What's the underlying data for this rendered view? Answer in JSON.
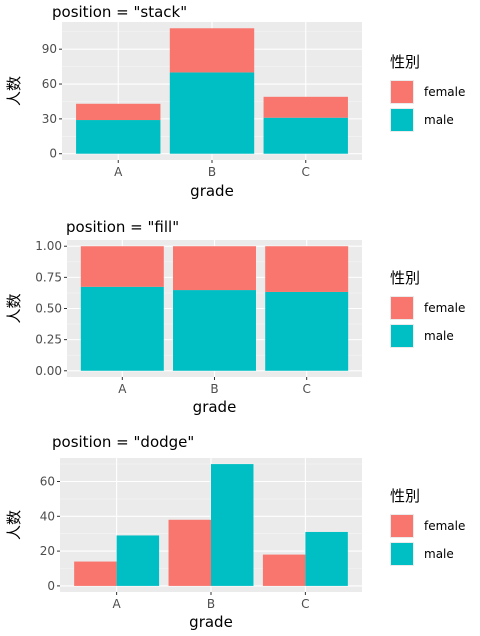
{
  "colors": {
    "female": "#F8766D",
    "male": "#00BFC4",
    "panel": "#EBEBEB",
    "grid_major": "#FFFFFF",
    "grid_minor": "#F5F5F5"
  },
  "legend": {
    "title": "性別",
    "labels": [
      "female",
      "male"
    ]
  },
  "chart_data": [
    {
      "type": "bar",
      "mode": "stack",
      "title": "position = \"stack\"",
      "xlabel": "grade",
      "ylabel": "人数",
      "categories": [
        "A",
        "B",
        "C"
      ],
      "series": [
        {
          "name": "female",
          "values": [
            14,
            38,
            18
          ]
        },
        {
          "name": "male",
          "values": [
            29,
            70,
            31
          ]
        }
      ],
      "ylim": [
        -5.4,
        113.4
      ],
      "yticks": [
        0,
        30,
        60,
        90
      ],
      "ytick_labels": [
        "0",
        "30",
        "60",
        "90"
      ],
      "grid": true
    },
    {
      "type": "bar",
      "mode": "fill",
      "title": "position = \"fill\"",
      "xlabel": "grade",
      "ylabel": "人数",
      "categories": [
        "A",
        "B",
        "C"
      ],
      "series": [
        {
          "name": "female",
          "values": [
            0.326,
            0.352,
            0.367
          ]
        },
        {
          "name": "male",
          "values": [
            0.674,
            0.648,
            0.633
          ]
        }
      ],
      "ylim": [
        -0.05,
        1.05
      ],
      "yticks": [
        0,
        0.25,
        0.5,
        0.75,
        1
      ],
      "ytick_labels": [
        "0.00",
        "0.25",
        "0.50",
        "0.75",
        "1.00"
      ],
      "grid": true
    },
    {
      "type": "bar",
      "mode": "dodge",
      "title": "position = \"dodge\"",
      "xlabel": "grade",
      "ylabel": "人数",
      "categories": [
        "A",
        "B",
        "C"
      ],
      "series": [
        {
          "name": "female",
          "values": [
            14,
            38,
            18
          ]
        },
        {
          "name": "male",
          "values": [
            29,
            70,
            31
          ]
        }
      ],
      "ylim": [
        -3.5,
        73.5
      ],
      "yticks": [
        0,
        20,
        40,
        60
      ],
      "ytick_labels": [
        "0",
        "20",
        "40",
        "60"
      ],
      "grid": true
    }
  ]
}
